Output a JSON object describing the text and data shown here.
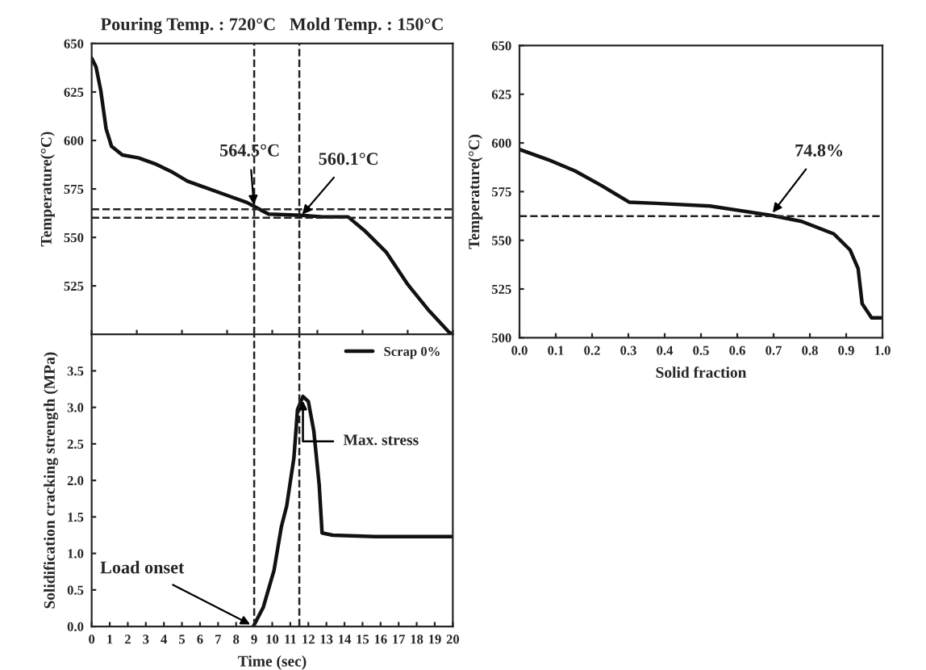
{
  "chart_data": [
    {
      "type": "line",
      "title": "Pouring Temp. : 720°C   Mold Temp. : 150°C",
      "ylabel": "Temperature(°C)",
      "xlim": [
        0,
        20
      ],
      "ylim": [
        500,
        650
      ],
      "yticks": [
        525,
        550,
        575,
        600,
        625,
        650
      ],
      "tick_labels": "y",
      "line_style": "solid",
      "marker": "none",
      "series": [
        {
          "color": "#111111",
          "x": [
            0,
            0.24,
            0.5,
            0.8,
            1.1,
            1.7,
            2.6,
            3.5,
            4.4,
            5.3,
            6.2,
            7.4,
            8.6,
            9,
            9.8,
            11.6,
            12.8,
            14.2,
            15.1,
            16.3,
            17.5,
            18.7,
            19.8,
            20
          ],
          "values": [
            642.5,
            638,
            626,
            606,
            597,
            592.5,
            591,
            588,
            584,
            579,
            576,
            572,
            568,
            566,
            562,
            561.4,
            560.6,
            560.6,
            553.6,
            542.5,
            525.8,
            512,
            501,
            500
          ]
        }
      ],
      "ref_lines": [
        {
          "axis": "y",
          "value": 564.5,
          "line_style": "dashed"
        },
        {
          "axis": "y",
          "value": 560.1,
          "line_style": "dashed"
        },
        {
          "axis": "x",
          "value": 9,
          "line_style": "dashed"
        },
        {
          "axis": "x",
          "value": 11.5,
          "line_style": "dashed"
        }
      ],
      "annotations": [
        {
          "text": "564.5°C",
          "x": 9,
          "y": 564.5
        },
        {
          "text": "560.1°C",
          "x": 11.5,
          "y": 560.1
        }
      ]
    },
    {
      "type": "line",
      "xlabel": "Time (sec)",
      "ylabel": "Solidification cracking strength (MPa)",
      "xlim": [
        0,
        20
      ],
      "ylim": [
        0,
        4.0
      ],
      "xticks": [
        0,
        1,
        2,
        3,
        4,
        5,
        6,
        7,
        8,
        9,
        10,
        11,
        12,
        13,
        14,
        15,
        16,
        17,
        18,
        19,
        20
      ],
      "yticks": [
        {
          "value": 0,
          "label": "0.0"
        },
        {
          "value": 0.5,
          "label": "0.5"
        },
        {
          "value": 1,
          "label": "1.0"
        },
        {
          "value": 1.5,
          "label": "1.5"
        },
        {
          "value": 2,
          "label": "2.0"
        },
        {
          "value": 2.5,
          "label": "2.5"
        },
        {
          "value": 3,
          "label": "3.0"
        },
        {
          "value": 3.5,
          "label": "3.5"
        }
      ],
      "legend": "top right",
      "line_style": "solid",
      "marker": "none",
      "series": [
        {
          "name": "Scrap 0%",
          "color": "#111111",
          "x": [
            8.95,
            9.5,
            10.1,
            10.5,
            10.8,
            11.2,
            11.4,
            11.7,
            12.0,
            12.3,
            12.6,
            12.76,
            13.35,
            15.7,
            20
          ],
          "values": [
            0,
            0.26,
            0.77,
            1.36,
            1.65,
            2.31,
            2.97,
            3.15,
            3.08,
            2.68,
            1.94,
            1.28,
            1.25,
            1.23,
            1.23
          ]
        }
      ],
      "ref_lines": [
        {
          "axis": "x",
          "value": 9,
          "line_style": "dashed"
        },
        {
          "axis": "x",
          "value": 11.5,
          "line_style": "dashed"
        }
      ],
      "annotations": [
        {
          "text": "Load onset",
          "x": 9,
          "y": 0
        },
        {
          "text": "Max. stress",
          "x": 11.7,
          "y": 3.15
        }
      ]
    },
    {
      "type": "line",
      "xlabel": "Solid fraction",
      "ylabel": "Temperature(°C)",
      "xlim": [
        0,
        1
      ],
      "ylim": [
        500,
        650
      ],
      "xticks": [
        {
          "value": 0,
          "label": "0.0"
        },
        {
          "value": 0.1,
          "label": "0.1"
        },
        {
          "value": 0.2,
          "label": "0.2"
        },
        {
          "value": 0.3,
          "label": "0.3"
        },
        {
          "value": 0.4,
          "label": "0.4"
        },
        {
          "value": 0.5,
          "label": "0.5"
        },
        {
          "value": 0.6,
          "label": "0.6"
        },
        {
          "value": 0.7,
          "label": "0.7"
        },
        {
          "value": 0.8,
          "label": "0.8"
        },
        {
          "value": 0.9,
          "label": "0.9"
        },
        {
          "value": 1,
          "label": "1.0"
        }
      ],
      "yticks": [
        500,
        525,
        550,
        575,
        600,
        625,
        650
      ],
      "line_style": "solid",
      "marker": "none",
      "series": [
        {
          "color": "#111111",
          "x": [
            0,
            0.079,
            0.153,
            0.227,
            0.302,
            0.376,
            0.525,
            0.688,
            0.777,
            0.866,
            0.911,
            0.933,
            0.944,
            0.97,
            1.0
          ],
          "values": [
            596.7,
            591.4,
            585.6,
            578,
            569.6,
            569,
            567.6,
            563,
            559.7,
            553.3,
            545,
            535.4,
            517.4,
            510.2,
            510.2
          ]
        }
      ],
      "ref_lines": [
        {
          "axis": "y",
          "value": 562.4,
          "line_style": "dashed"
        }
      ],
      "annotations": [
        {
          "text": "74.8%",
          "x": 0.69,
          "y": 562.4
        }
      ]
    }
  ]
}
